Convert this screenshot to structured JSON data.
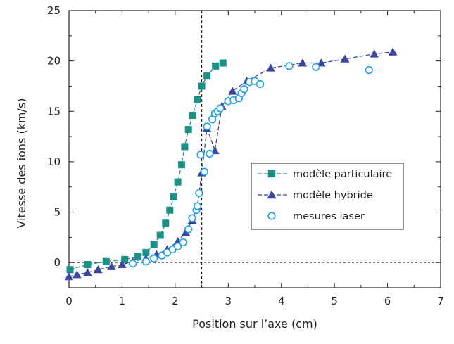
{
  "chart_data": {
    "type": "line",
    "xlabel": "Position sur l’axe (cm)",
    "ylabel": "Vitesse des ions (km/s)",
    "xlim": [
      0,
      7
    ],
    "ylim": [
      -2.5,
      25
    ],
    "x_ticks": [
      "0",
      "1",
      "2",
      "3",
      "4",
      "5",
      "6",
      "7"
    ],
    "y_ticks": [
      "0",
      "5",
      "10",
      "15",
      "20",
      "25"
    ],
    "reference_lines": {
      "vertical_x": 2.5,
      "horizontal_y": 0
    },
    "legend_position": "center-right",
    "series": [
      {
        "name": "modèle particulaire",
        "marker": "square",
        "line": "dashed",
        "color": "#1a8f86",
        "points": [
          [
            0.02,
            -0.7
          ],
          [
            0.35,
            -0.2
          ],
          [
            0.7,
            0.1
          ],
          [
            1.05,
            0.3
          ],
          [
            1.3,
            0.6
          ],
          [
            1.45,
            1.0
          ],
          [
            1.6,
            1.8
          ],
          [
            1.72,
            2.7
          ],
          [
            1.82,
            3.9
          ],
          [
            1.9,
            5.2
          ],
          [
            1.97,
            6.5
          ],
          [
            2.05,
            8.0
          ],
          [
            2.12,
            9.7
          ],
          [
            2.18,
            11.5
          ],
          [
            2.25,
            13.2
          ],
          [
            2.33,
            14.6
          ],
          [
            2.42,
            16.2
          ],
          [
            2.5,
            17.5
          ],
          [
            2.6,
            18.5
          ],
          [
            2.76,
            19.5
          ],
          [
            2.9,
            19.8
          ]
        ]
      },
      {
        "name": "modèle hybride",
        "marker": "triangle",
        "line": "dashed",
        "color": "#3c46a0",
        "points": [
          [
            0.0,
            -1.4
          ],
          [
            0.15,
            -1.2
          ],
          [
            0.35,
            -1.0
          ],
          [
            0.55,
            -0.7
          ],
          [
            0.8,
            -0.4
          ],
          [
            1.0,
            -0.2
          ],
          [
            1.2,
            0.1
          ],
          [
            1.45,
            0.4
          ],
          [
            1.65,
            0.8
          ],
          [
            1.85,
            1.3
          ],
          [
            2.05,
            2.1
          ],
          [
            2.2,
            3.0
          ],
          [
            2.32,
            4.2
          ],
          [
            2.42,
            5.6
          ],
          [
            2.5,
            8.9
          ],
          [
            2.6,
            13.3
          ],
          [
            2.75,
            11.1
          ],
          [
            2.88,
            15.5
          ],
          [
            3.08,
            17.0
          ],
          [
            3.35,
            18.0
          ],
          [
            3.8,
            19.3
          ],
          [
            4.4,
            19.8
          ],
          [
            4.75,
            19.8
          ],
          [
            5.2,
            20.2
          ],
          [
            5.75,
            20.7
          ],
          [
            6.1,
            20.9
          ]
        ]
      },
      {
        "name": "mesures laser",
        "marker": "circle-open",
        "line": "none",
        "color": "#1e9fe6",
        "points": [
          [
            1.2,
            -0.1
          ],
          [
            1.45,
            0.1
          ],
          [
            1.6,
            0.4
          ],
          [
            1.75,
            0.7
          ],
          [
            1.85,
            1.0
          ],
          [
            1.95,
            1.3
          ],
          [
            2.05,
            1.6
          ],
          [
            2.15,
            2.0
          ],
          [
            2.25,
            3.3
          ],
          [
            2.32,
            4.4
          ],
          [
            2.4,
            5.2
          ],
          [
            2.42,
            5.6
          ],
          [
            2.45,
            6.9
          ],
          [
            2.48,
            10.7
          ],
          [
            2.55,
            9.0
          ],
          [
            2.6,
            13.5
          ],
          [
            2.65,
            10.8
          ],
          [
            2.7,
            14.2
          ],
          [
            2.75,
            14.8
          ],
          [
            2.8,
            15.0
          ],
          [
            2.85,
            15.3
          ],
          [
            3.0,
            16.0
          ],
          [
            3.1,
            16.1
          ],
          [
            3.2,
            16.3
          ],
          [
            3.25,
            16.8
          ],
          [
            3.3,
            17.2
          ],
          [
            3.4,
            17.9
          ],
          [
            3.5,
            18.0
          ],
          [
            3.6,
            17.7
          ],
          [
            4.15,
            19.5
          ],
          [
            4.65,
            19.4
          ],
          [
            5.65,
            19.1
          ]
        ]
      }
    ]
  }
}
